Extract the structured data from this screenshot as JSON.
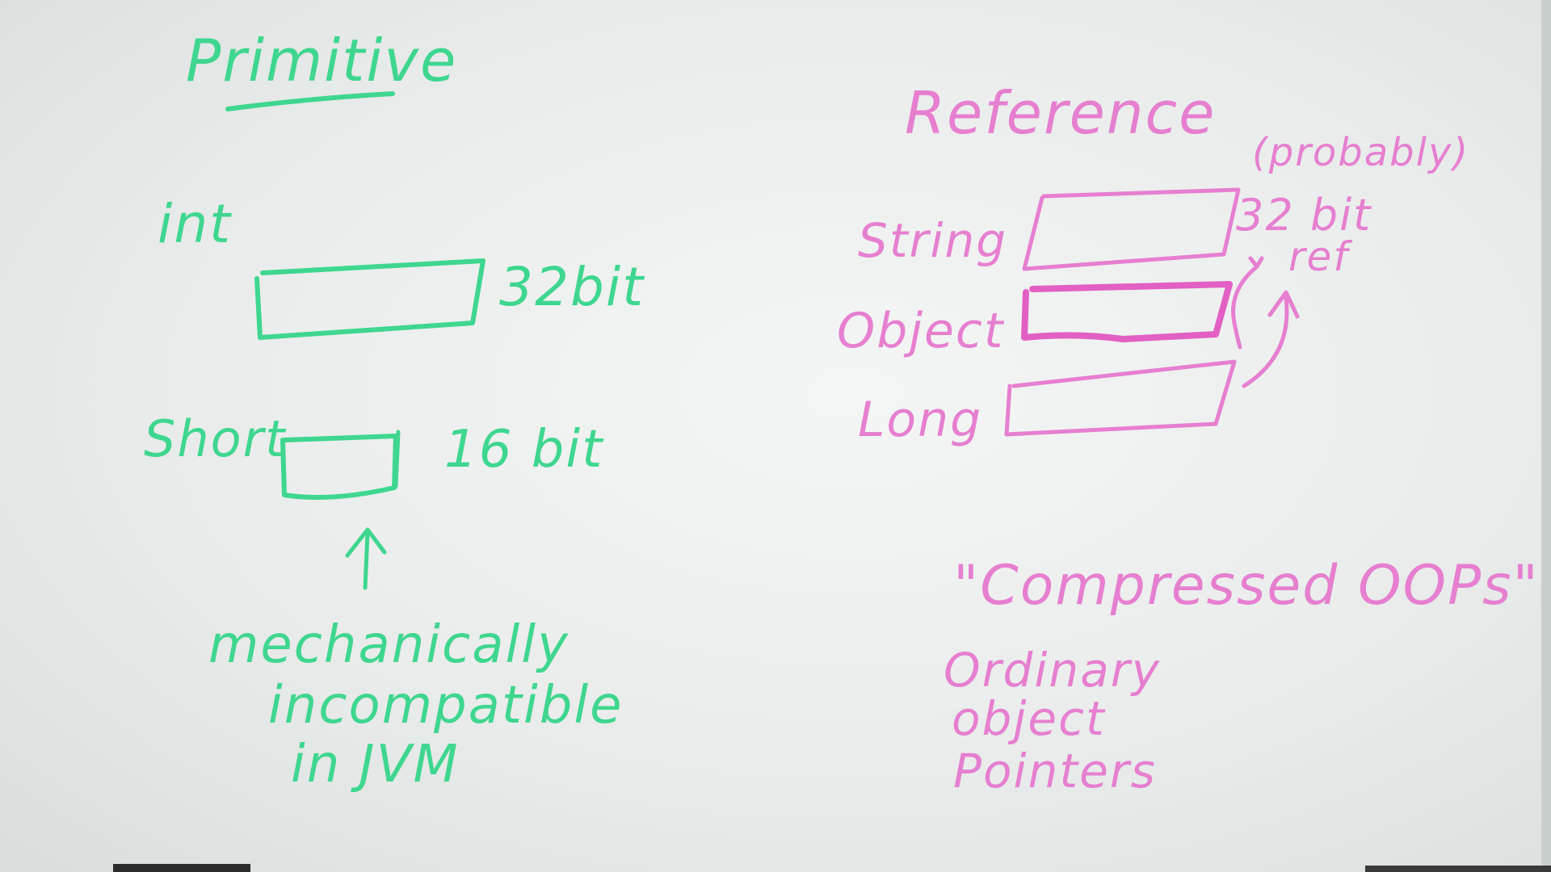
{
  "primitive": {
    "heading": "Primitive",
    "int_label": "int",
    "int_size": "32bit",
    "short_label": "Short",
    "short_size": "16 bit",
    "note_lines": [
      "mechanically",
      "incompatible",
      "in JVM"
    ]
  },
  "reference": {
    "heading": "Reference",
    "probably": "(probably)",
    "size_lines": [
      "32 bit",
      "ref"
    ],
    "rows": [
      "String",
      "Object",
      "Long"
    ],
    "oops": {
      "quote": "\"Compressed OOPs\"",
      "expansion": [
        "Ordinary",
        "object",
        "Pointers"
      ]
    }
  },
  "colors": {
    "primitive_marker": "#3fd68f",
    "reference_marker": "#e67fd0",
    "board": "#eef1f0"
  }
}
